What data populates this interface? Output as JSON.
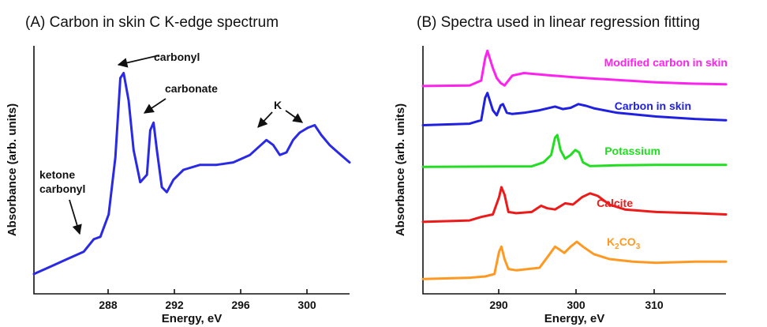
{
  "colors": {
    "panel_a_line": "#2a2ae6",
    "modified_carbon": "#ff22ee",
    "carbon_in_skin": "#2020e0",
    "potassium": "#22dd22",
    "calcite": "#ee1a1a",
    "k2co3": "#ff9922"
  },
  "chart_data": [
    {
      "type": "line",
      "title": "(A) Carbon in skin C K-edge spectrum",
      "xlabel": "Energy, eV",
      "ylabel": "Absorbance (arb. units)",
      "xlim": [
        283.0,
        302.0
      ],
      "ylim": [
        0,
        1.0
      ],
      "xticks": [
        "288",
        "292",
        "296",
        "300"
      ],
      "grid": false,
      "series": [
        {
          "x": [
            283.0,
            284.0,
            285.0,
            286.0,
            286.6,
            287.0,
            287.5,
            287.9,
            288.2,
            288.4,
            288.7,
            289.0,
            289.4,
            289.8,
            290.0,
            290.2,
            290.4,
            290.7,
            291.0,
            291.4,
            292.0,
            293.0,
            294.0,
            295.0,
            296.0,
            296.5,
            297.0,
            297.4,
            297.8,
            298.2,
            298.6,
            299.0,
            299.5,
            299.9,
            300.3,
            300.8,
            301.3,
            302.0
          ],
          "y": [
            0.08,
            0.11,
            0.14,
            0.17,
            0.22,
            0.23,
            0.32,
            0.55,
            0.87,
            0.89,
            0.78,
            0.58,
            0.45,
            0.48,
            0.66,
            0.69,
            0.58,
            0.43,
            0.41,
            0.46,
            0.5,
            0.52,
            0.52,
            0.53,
            0.56,
            0.59,
            0.62,
            0.6,
            0.56,
            0.57,
            0.62,
            0.65,
            0.67,
            0.68,
            0.64,
            0.6,
            0.57,
            0.53
          ]
        }
      ],
      "annotations": [
        {
          "text": "carbonyl",
          "x": 288.4,
          "y": 0.89
        },
        {
          "text": "carbonate",
          "x": 290.2,
          "y": 0.69
        },
        {
          "text": "K",
          "x": 297.0,
          "y": 0.62
        },
        {
          "text": "K",
          "x": 299.9,
          "y": 0.68
        },
        {
          "text": "ketone",
          "x": 286.6,
          "y": 0.22
        },
        {
          "text": "carbonyl",
          "x": 286.6,
          "y": 0.22
        }
      ]
    },
    {
      "type": "line",
      "title": "(B) Spectra used in linear regression fitting",
      "xlabel": "Energy, eV",
      "ylabel": "Absorbance (arb. units)",
      "xlim": [
        280,
        319
      ],
      "ylim": [
        0,
        1.0
      ],
      "xticks": [
        "290",
        "300",
        "310"
      ],
      "grid": false,
      "series": [
        {
          "name": "Modified carbon in skin",
          "color_key": "modified_carbon",
          "x": [
            280,
            286,
            287.5,
            288.0,
            288.3,
            289.0,
            289.5,
            290.0,
            290.5,
            291.5,
            293,
            296,
            300,
            305,
            310,
            315,
            319
          ],
          "y": [
            0.838,
            0.84,
            0.86,
            0.95,
            0.98,
            0.91,
            0.87,
            0.85,
            0.84,
            0.88,
            0.89,
            0.882,
            0.872,
            0.862,
            0.853,
            0.847,
            0.845
          ]
        },
        {
          "name": "Carbon in skin",
          "color_key": "carbon_in_skin",
          "x": [
            280,
            286,
            287.5,
            288.0,
            288.3,
            289.0,
            289.5,
            290.0,
            290.3,
            290.8,
            291.5,
            293,
            295,
            297,
            298,
            299,
            300,
            301,
            302,
            305,
            310,
            315,
            319
          ],
          "y": [
            0.68,
            0.686,
            0.7,
            0.79,
            0.81,
            0.74,
            0.72,
            0.76,
            0.765,
            0.73,
            0.725,
            0.73,
            0.74,
            0.755,
            0.745,
            0.75,
            0.765,
            0.758,
            0.748,
            0.73,
            0.715,
            0.705,
            0.7
          ]
        },
        {
          "name": "Potassium",
          "color_key": "potassium",
          "x": [
            280,
            294,
            295.5,
            296.5,
            297.0,
            297.3,
            297.7,
            298.3,
            299.0,
            299.6,
            300.1,
            300.6,
            301.5,
            305,
            310,
            319
          ],
          "y": [
            0.512,
            0.514,
            0.53,
            0.56,
            0.63,
            0.64,
            0.58,
            0.545,
            0.56,
            0.58,
            0.57,
            0.53,
            0.515,
            0.518,
            0.52,
            0.52
          ]
        },
        {
          "name": "Calcite",
          "color_key": "calcite",
          "x": [
            280,
            286,
            287.5,
            289.0,
            289.8,
            290.1,
            290.5,
            291.0,
            292,
            294,
            295.2,
            296,
            297,
            298.3,
            299.3,
            300.5,
            301.5,
            302.5,
            304,
            306,
            310,
            315,
            319
          ],
          "y": [
            0.29,
            0.296,
            0.31,
            0.32,
            0.39,
            0.43,
            0.4,
            0.33,
            0.325,
            0.33,
            0.355,
            0.345,
            0.34,
            0.365,
            0.36,
            0.39,
            0.405,
            0.395,
            0.36,
            0.34,
            0.33,
            0.325,
            0.32
          ]
        },
        {
          "name": "K₂CO₃",
          "color_key": "k2co3",
          "x": [
            280,
            286,
            288,
            289.2,
            289.8,
            290.1,
            290.5,
            291.0,
            292,
            295,
            296.3,
            297.0,
            297.5,
            298.2,
            299.0,
            299.8,
            300.6,
            302,
            304,
            307,
            310,
            315,
            319
          ],
          "y": [
            0.06,
            0.065,
            0.07,
            0.08,
            0.17,
            0.19,
            0.14,
            0.1,
            0.095,
            0.105,
            0.16,
            0.19,
            0.18,
            0.165,
            0.19,
            0.21,
            0.19,
            0.16,
            0.14,
            0.13,
            0.125,
            0.13,
            0.13
          ]
        }
      ]
    }
  ],
  "labels": {
    "ann_carbonyl": "carbonyl",
    "ann_carbonate": "carbonate",
    "ann_k": "K",
    "ann_ketone_1": "ketone",
    "ann_ketone_2": "carbonyl",
    "series_modified": "Modified carbon in skin",
    "series_carbon": "Carbon in skin",
    "series_potassium": "Potassium",
    "series_calcite": "Calcite",
    "series_k2co3_k": "K",
    "series_k2co3_sub1": "2",
    "series_k2co3_co": "CO",
    "series_k2co3_sub2": "3"
  }
}
